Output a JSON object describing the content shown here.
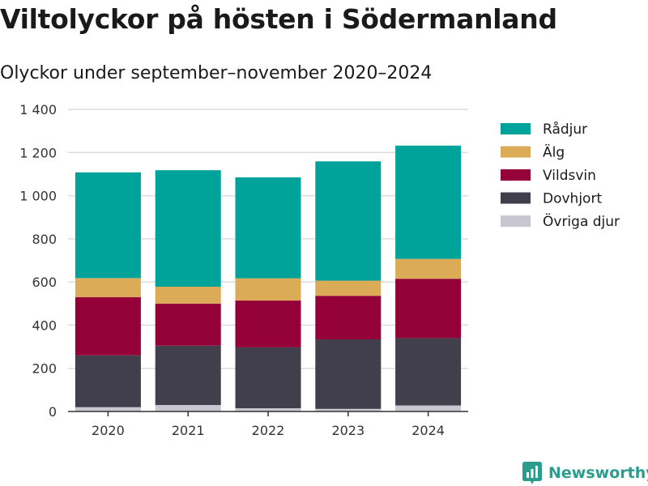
{
  "chart_data": {
    "type": "bar",
    "stacked": true,
    "title": "Viltolyckor på hösten i Södermanland",
    "subtitle": "Olyckor under september–november 2020–2024",
    "categories": [
      "2020",
      "2021",
      "2022",
      "2023",
      "2024"
    ],
    "series": [
      {
        "name": "Övriga djur",
        "color": "#c8c7d0",
        "values": [
          20,
          30,
          15,
          12,
          28
        ]
      },
      {
        "name": "Dovhjort",
        "color": "#413f4c",
        "values": [
          240,
          275,
          282,
          322,
          312
        ]
      },
      {
        "name": "Vildsvin",
        "color": "#940038",
        "values": [
          270,
          195,
          217,
          202,
          275
        ]
      },
      {
        "name": "Älg",
        "color": "#dbab58",
        "values": [
          88,
          78,
          103,
          70,
          92
        ]
      },
      {
        "name": "Rådjur",
        "color": "#00a39a",
        "values": [
          490,
          540,
          468,
          553,
          525
        ]
      }
    ],
    "legend_order": [
      "Rådjur",
      "Älg",
      "Vildsvin",
      "Dovhjort",
      "Övriga djur"
    ],
    "ylim": [
      0,
      1400
    ],
    "yticks": [
      0,
      200,
      400,
      600,
      800,
      1000,
      1200,
      1400
    ],
    "ytick_labels": [
      "0",
      "200",
      "400",
      "600",
      "800",
      "1 000",
      "1 200",
      "1 400"
    ],
    "xlabel": "",
    "ylabel": "",
    "grid": true,
    "legend_position": "right"
  },
  "branding": {
    "name": "Newsworthy",
    "color": "#2a9d8f"
  }
}
